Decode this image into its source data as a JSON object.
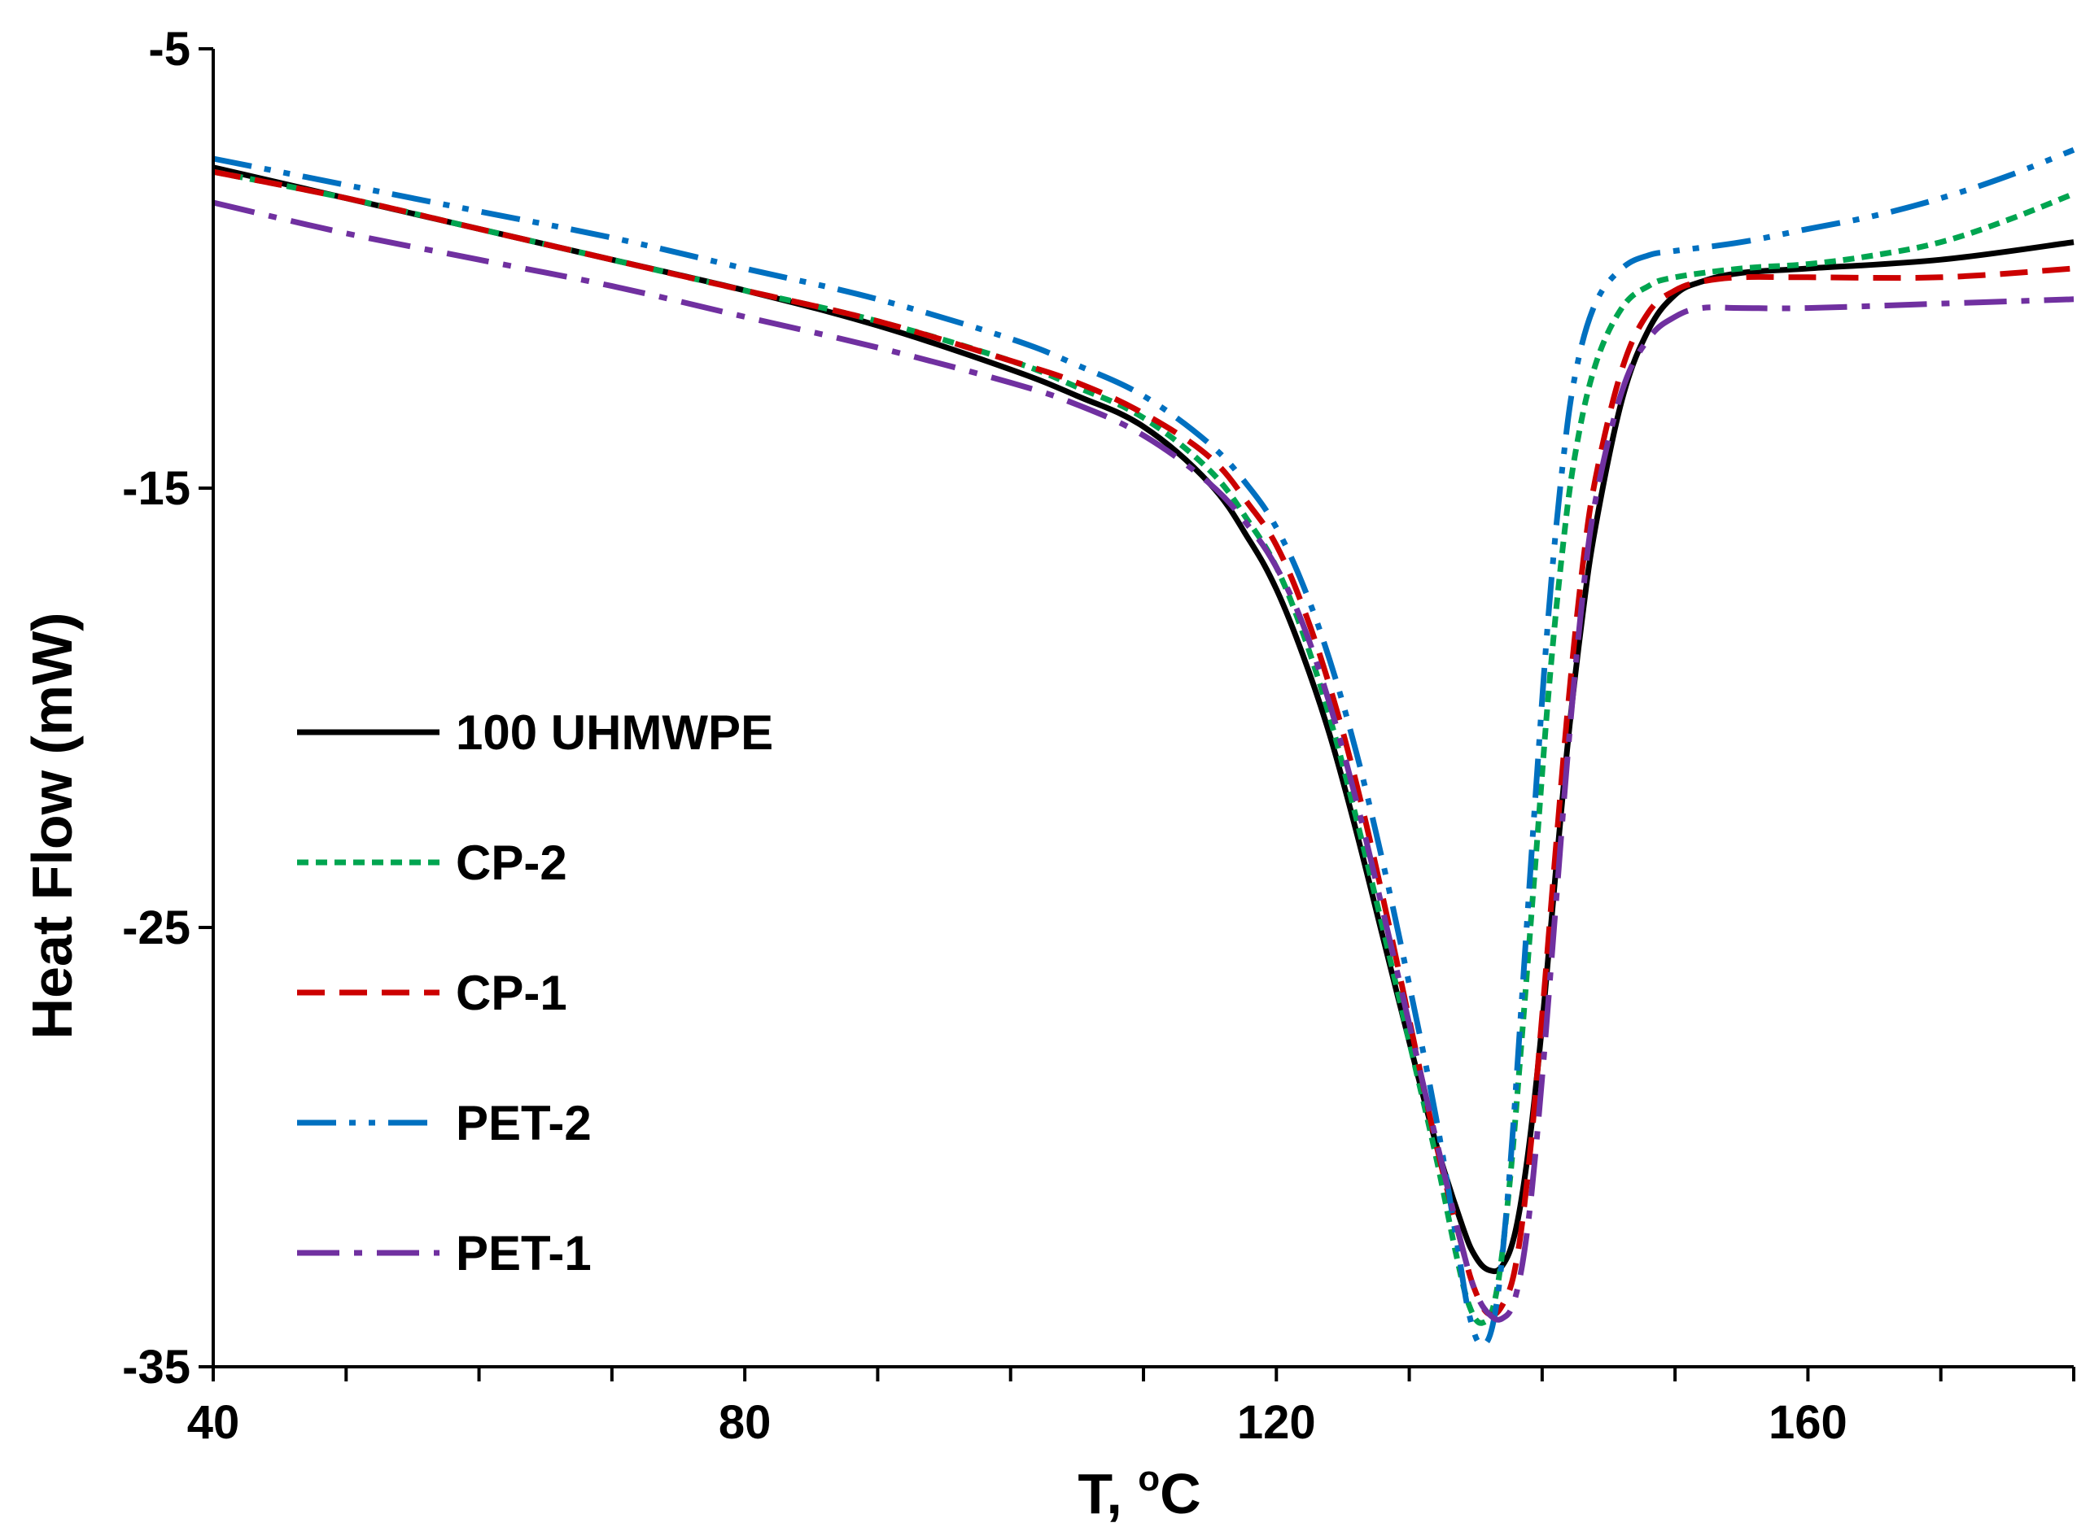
{
  "chart_data": {
    "type": "line",
    "title": "",
    "xlabel": "T, °C",
    "xlabel_main": "T, ",
    "xlabel_sup": "o",
    "xlabel_unit": "C",
    "ylabel": "Heat Flow (mW)",
    "xlim": [
      40,
      180
    ],
    "ylim": [
      -35,
      -5
    ],
    "xticks": [
      40,
      80,
      120,
      160
    ],
    "yticks": [
      -5,
      -15,
      -25,
      -35
    ],
    "x_minor_step": 10,
    "grid": false,
    "legend_position": "left-middle",
    "series": [
      {
        "name": "100 UHMWPE",
        "color": "#000000",
        "dash": "solid",
        "points": [
          [
            40,
            -7.7
          ],
          [
            50,
            -8.4
          ],
          [
            60,
            -9.1
          ],
          [
            70,
            -9.8
          ],
          [
            80,
            -10.5
          ],
          [
            90,
            -11.3
          ],
          [
            100,
            -12.3
          ],
          [
            105,
            -12.9
          ],
          [
            110,
            -13.6
          ],
          [
            115,
            -14.9
          ],
          [
            118,
            -16.2
          ],
          [
            120,
            -17.3
          ],
          [
            122,
            -18.8
          ],
          [
            124,
            -20.6
          ],
          [
            126,
            -22.8
          ],
          [
            128,
            -25.2
          ],
          [
            130,
            -27.6
          ],
          [
            132,
            -29.9
          ],
          [
            134,
            -31.8
          ],
          [
            135,
            -32.5
          ],
          [
            136,
            -32.8
          ],
          [
            137,
            -32.7
          ],
          [
            138,
            -31.9
          ],
          [
            139,
            -30.0
          ],
          [
            140,
            -27.2
          ],
          [
            141,
            -23.8
          ],
          [
            142,
            -20.6
          ],
          [
            143,
            -18.0
          ],
          [
            144,
            -15.9
          ],
          [
            146,
            -13.0
          ],
          [
            148,
            -11.4
          ],
          [
            150,
            -10.6
          ],
          [
            152,
            -10.3
          ],
          [
            155,
            -10.1
          ],
          [
            160,
            -10.0
          ],
          [
            170,
            -9.8
          ],
          [
            180,
            -9.4
          ]
        ]
      },
      {
        "name": "CP-2",
        "color": "#00a550",
        "dash": "dotted",
        "points": [
          [
            40,
            -7.8
          ],
          [
            50,
            -8.4
          ],
          [
            60,
            -9.1
          ],
          [
            70,
            -9.8
          ],
          [
            80,
            -10.5
          ],
          [
            90,
            -11.2
          ],
          [
            100,
            -12.1
          ],
          [
            105,
            -12.7
          ],
          [
            110,
            -13.4
          ],
          [
            115,
            -14.6
          ],
          [
            118,
            -15.8
          ],
          [
            120,
            -16.8
          ],
          [
            122,
            -18.3
          ],
          [
            124,
            -20.2
          ],
          [
            126,
            -22.5
          ],
          [
            128,
            -25.0
          ],
          [
            130,
            -27.6
          ],
          [
            132,
            -30.2
          ],
          [
            133.5,
            -32.4
          ],
          [
            134.5,
            -33.6
          ],
          [
            135.5,
            -34.0
          ],
          [
            136.5,
            -33.4
          ],
          [
            137.5,
            -31.0
          ],
          [
            138.5,
            -27.4
          ],
          [
            139.5,
            -23.5
          ],
          [
            140.5,
            -19.6
          ],
          [
            141.5,
            -16.5
          ],
          [
            142.5,
            -14.2
          ],
          [
            144,
            -12.2
          ],
          [
            146,
            -10.9
          ],
          [
            148,
            -10.4
          ],
          [
            150,
            -10.2
          ],
          [
            155,
            -10.0
          ],
          [
            160,
            -9.9
          ],
          [
            165,
            -9.7
          ],
          [
            170,
            -9.4
          ],
          [
            175,
            -8.9
          ],
          [
            180,
            -8.3
          ]
        ]
      },
      {
        "name": "CP-1",
        "color": "#cc0000",
        "dash": "dashed",
        "points": [
          [
            40,
            -7.8
          ],
          [
            50,
            -8.4
          ],
          [
            60,
            -9.1
          ],
          [
            70,
            -9.8
          ],
          [
            80,
            -10.5
          ],
          [
            90,
            -11.2
          ],
          [
            100,
            -12.1
          ],
          [
            105,
            -12.6
          ],
          [
            110,
            -13.3
          ],
          [
            115,
            -14.3
          ],
          [
            118,
            -15.4
          ],
          [
            120,
            -16.3
          ],
          [
            122,
            -17.7
          ],
          [
            124,
            -19.5
          ],
          [
            126,
            -21.7
          ],
          [
            128,
            -24.3
          ],
          [
            130,
            -27.1
          ],
          [
            132,
            -29.9
          ],
          [
            134,
            -32.3
          ],
          [
            135,
            -33.3
          ],
          [
            136,
            -33.8
          ],
          [
            137,
            -33.6
          ],
          [
            138,
            -32.7
          ],
          [
            139,
            -30.4
          ],
          [
            140,
            -27.0
          ],
          [
            141,
            -23.3
          ],
          [
            142,
            -19.8
          ],
          [
            143,
            -16.9
          ],
          [
            144,
            -14.8
          ],
          [
            146,
            -12.3
          ],
          [
            148,
            -11.0
          ],
          [
            150,
            -10.5
          ],
          [
            152,
            -10.3
          ],
          [
            155,
            -10.2
          ],
          [
            160,
            -10.2
          ],
          [
            170,
            -10.2
          ],
          [
            180,
            -10.0
          ]
        ]
      },
      {
        "name": "PET-2",
        "color": "#0070c0",
        "dash": "dashdotdot",
        "points": [
          [
            40,
            -7.5
          ],
          [
            50,
            -8.1
          ],
          [
            60,
            -8.7
          ],
          [
            70,
            -9.3
          ],
          [
            80,
            -10.0
          ],
          [
            90,
            -10.7
          ],
          [
            100,
            -11.6
          ],
          [
            105,
            -12.2
          ],
          [
            110,
            -12.9
          ],
          [
            115,
            -14.0
          ],
          [
            118,
            -15.0
          ],
          [
            120,
            -15.9
          ],
          [
            122,
            -17.2
          ],
          [
            124,
            -18.9
          ],
          [
            126,
            -21.0
          ],
          [
            128,
            -23.5
          ],
          [
            130,
            -26.3
          ],
          [
            132,
            -29.3
          ],
          [
            133.5,
            -32.0
          ],
          [
            134.5,
            -33.8
          ],
          [
            135.5,
            -34.5
          ],
          [
            136.5,
            -33.7
          ],
          [
            137.5,
            -30.8
          ],
          [
            138.5,
            -26.5
          ],
          [
            139.5,
            -22.0
          ],
          [
            140.5,
            -17.8
          ],
          [
            141.5,
            -14.6
          ],
          [
            142.5,
            -12.4
          ],
          [
            144,
            -10.8
          ],
          [
            146,
            -10.0
          ],
          [
            148,
            -9.7
          ],
          [
            150,
            -9.6
          ],
          [
            155,
            -9.4
          ],
          [
            160,
            -9.1
          ],
          [
            165,
            -8.8
          ],
          [
            170,
            -8.4
          ],
          [
            175,
            -7.9
          ],
          [
            180,
            -7.3
          ]
        ]
      },
      {
        "name": "PET-1",
        "color": "#7030a0",
        "dash": "dashdot",
        "points": [
          [
            40,
            -8.5
          ],
          [
            50,
            -9.2
          ],
          [
            60,
            -9.8
          ],
          [
            70,
            -10.4
          ],
          [
            80,
            -11.1
          ],
          [
            90,
            -11.8
          ],
          [
            100,
            -12.6
          ],
          [
            105,
            -13.1
          ],
          [
            110,
            -13.8
          ],
          [
            115,
            -14.9
          ],
          [
            118,
            -15.9
          ],
          [
            120,
            -16.8
          ],
          [
            122,
            -18.1
          ],
          [
            124,
            -19.9
          ],
          [
            126,
            -22.1
          ],
          [
            128,
            -24.6
          ],
          [
            130,
            -27.2
          ],
          [
            132,
            -29.8
          ],
          [
            134,
            -32.3
          ],
          [
            135,
            -33.3
          ],
          [
            136,
            -33.8
          ],
          [
            137,
            -33.9
          ],
          [
            138,
            -33.4
          ],
          [
            139,
            -31.6
          ],
          [
            140,
            -28.4
          ],
          [
            141,
            -24.6
          ],
          [
            142,
            -20.8
          ],
          [
            143,
            -17.6
          ],
          [
            144,
            -15.3
          ],
          [
            146,
            -12.8
          ],
          [
            148,
            -11.6
          ],
          [
            150,
            -11.1
          ],
          [
            152,
            -10.9
          ],
          [
            155,
            -10.9
          ],
          [
            160,
            -10.9
          ],
          [
            170,
            -10.8
          ],
          [
            180,
            -10.7
          ]
        ]
      }
    ]
  }
}
